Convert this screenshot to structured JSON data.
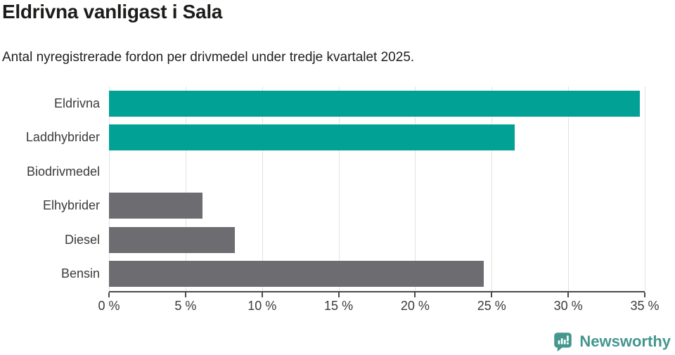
{
  "title": "Eldrivna vanligast i Sala",
  "subtitle": "Antal nyregistrerade fordon per drivmedel under tredje kvartalet 2025.",
  "chart_data": {
    "type": "bar",
    "orientation": "horizontal",
    "categories": [
      "Eldrivna",
      "Laddhybrider",
      "Biodrivmedel",
      "Elhybrider",
      "Diesel",
      "Bensin"
    ],
    "values": [
      34.7,
      26.5,
      0,
      6.1,
      8.2,
      24.5
    ],
    "bar_colors": [
      "#02a195",
      "#02a195",
      "#6c6c71",
      "#6c6c71",
      "#6c6c71",
      "#6c6c71"
    ],
    "unit": "%",
    "title": "Eldrivna vanligast i Sala",
    "xlabel": "",
    "ylabel": "",
    "xlim": [
      0,
      35
    ],
    "x_ticks": [
      0,
      5,
      10,
      15,
      20,
      25,
      30,
      35
    ],
    "x_tick_labels": [
      "0 %",
      "5 %",
      "10 %",
      "15 %",
      "20 %",
      "25 %",
      "30 %",
      "35 %"
    ],
    "grid": true,
    "legend": "none"
  },
  "colors": {
    "teal": "#02a195",
    "gray": "#6c6c71",
    "gridline": "#e2e2e2",
    "axis": "#4a4a4a",
    "text": "#1c1c1a",
    "logo": "#45968f"
  },
  "footer": {
    "brand": "Newsworthy",
    "logo_icon": "speech-bubble-bar-chart-icon"
  }
}
